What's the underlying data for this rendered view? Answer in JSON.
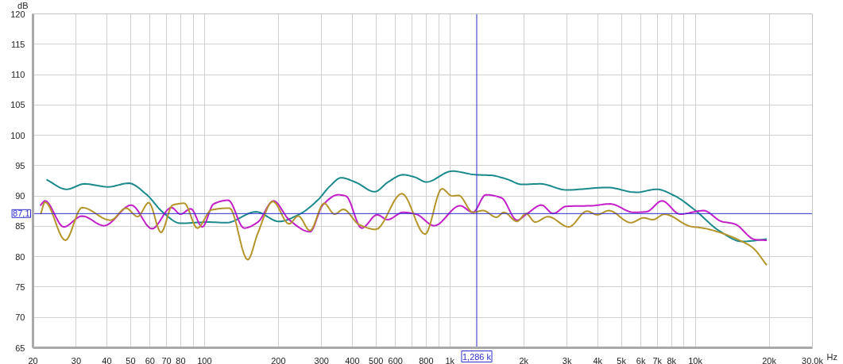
{
  "chart_data": {
    "type": "line",
    "xlabel": "Hz",
    "ylabel": "dB",
    "log": "x",
    "grid": true,
    "xlim": [
      20,
      30000
    ],
    "ylim": [
      65,
      120
    ],
    "xticks": [
      20,
      30,
      40,
      50,
      60,
      70,
      80,
      {
        "value": 90,
        "label": null
      },
      100,
      200,
      300,
      400,
      500,
      600,
      {
        "value": 700,
        "label": null
      },
      800,
      {
        "value": 900,
        "label": null
      },
      {
        "value": 1000,
        "label": "1k"
      },
      {
        "value": 2000,
        "label": "2k"
      },
      {
        "value": 3000,
        "label": "3k"
      },
      {
        "value": 4000,
        "label": "4k"
      },
      {
        "value": 5000,
        "label": "5k"
      },
      {
        "value": 6000,
        "label": "6k"
      },
      {
        "value": 7000,
        "label": "7k"
      },
      {
        "value": 8000,
        "label": "8k"
      },
      {
        "value": 9000,
        "label": null
      },
      {
        "value": 10000,
        "label": "10k"
      },
      {
        "value": 20000,
        "label": "20k"
      },
      {
        "value": 30000,
        "label": "30,0k"
      }
    ],
    "yticks": [
      65,
      70,
      75,
      80,
      85,
      90,
      95,
      100,
      105,
      110,
      115,
      120
    ],
    "ref_lines": [
      {
        "axis": "x",
        "value": 1286,
        "label": "1,286 k",
        "color": "#2f2fd0"
      },
      {
        "axis": "y",
        "value": 87.1,
        "label": "87,1",
        "color": "#2f2fd0"
      }
    ],
    "series": [
      {
        "color": "#1b8a8c",
        "x": [
          22.7,
          27.4,
          32.5,
          40.4,
          49.1,
          58.2,
          67.3,
          79.8,
          104,
          123,
          162,
          201,
          244,
          289,
          326,
          360,
          416,
          493,
          560,
          644,
          720,
          801,
          1021,
          1271,
          1471,
          1700,
          1968,
          2335,
          2978,
          4385,
          5736,
          6966,
          8260,
          10020,
          12470,
          15520,
          19550
        ],
        "values": [
          92.7,
          91.1,
          92.0,
          91.5,
          92.1,
          90.2,
          87.4,
          85.5,
          85.7,
          85.6,
          87.4,
          85.8,
          87.0,
          89.3,
          91.7,
          93.0,
          92.2,
          90.7,
          92.3,
          93.5,
          93.1,
          92.3,
          94.1,
          93.5,
          93.4,
          92.8,
          91.9,
          92.0,
          91.0,
          91.4,
          90.6,
          91.1,
          90.0,
          87.6,
          84.3,
          82.5,
          82.9
        ]
      },
      {
        "color": "#c21fc8",
        "x": [
          21.4,
          22.4,
          26.7,
          31.7,
          39.0,
          50.3,
          61.1,
          73.3,
          79.8,
          87.9,
          98,
          109,
          125,
          145,
          165,
          191,
          221,
          269,
          303,
          351,
          377,
          437,
          505,
          557,
          644,
          728,
          863,
          1099,
          1241,
          1401,
          1622,
          1876,
          2066,
          2360,
          2636,
          2978,
          3793,
          4498,
          5597,
          6324,
          7316,
          8669,
          10800,
          12800,
          14450,
          17540,
          19550
        ],
        "values": [
          88.4,
          89.2,
          84.9,
          86.7,
          85.1,
          88.5,
          84.6,
          88.1,
          87.0,
          87.9,
          84.9,
          88.7,
          89.3,
          84.7,
          85.7,
          89.2,
          86.1,
          84.1,
          88.5,
          90.2,
          90.0,
          84.7,
          86.9,
          86.1,
          87.3,
          87.0,
          85.1,
          88.4,
          87.3,
          90.2,
          89.7,
          86.0,
          87.1,
          88.5,
          87.1,
          88.3,
          88.4,
          88.7,
          87.3,
          87.4,
          89.2,
          87.0,
          87.6,
          85.8,
          85.4,
          82.8,
          82.7
        ]
      },
      {
        "color": "#b5952a",
        "x": [
          21.5,
          22.4,
          27.1,
          31.7,
          41.4,
          47.9,
          53.4,
          59.3,
          66.5,
          74.1,
          82.7,
          93.5,
          106.7,
          126.5,
          150,
          165,
          190,
          221,
          241,
          269,
          307,
          339,
          368,
          426,
          499,
          637,
          792,
          928,
          1021,
          1086,
          1241,
          1368,
          1545,
          1661,
          1876,
          2043,
          2224,
          2511,
          3051,
          3615,
          3985,
          4443,
          5460,
          6166,
          6713,
          7487,
          9545,
          10800,
          12800,
          15520,
          17120,
          19550
        ],
        "values": [
          87.0,
          89.0,
          82.7,
          88.1,
          86.0,
          88.0,
          86.6,
          88.9,
          84.0,
          88.5,
          88.8,
          84.7,
          87.7,
          88.0,
          79.5,
          83.9,
          89.1,
          85.4,
          86.7,
          84.3,
          88.8,
          87.0,
          87.8,
          85.3,
          84.5,
          90.4,
          83.7,
          91.2,
          90.0,
          90.1,
          87.3,
          87.6,
          86.5,
          87.3,
          85.8,
          87.1,
          85.7,
          86.6,
          84.9,
          87.5,
          86.9,
          87.6,
          85.6,
          86.4,
          86.1,
          87.0,
          85.0,
          84.7,
          83.9,
          82.5,
          81.5,
          78.6
        ]
      }
    ]
  }
}
